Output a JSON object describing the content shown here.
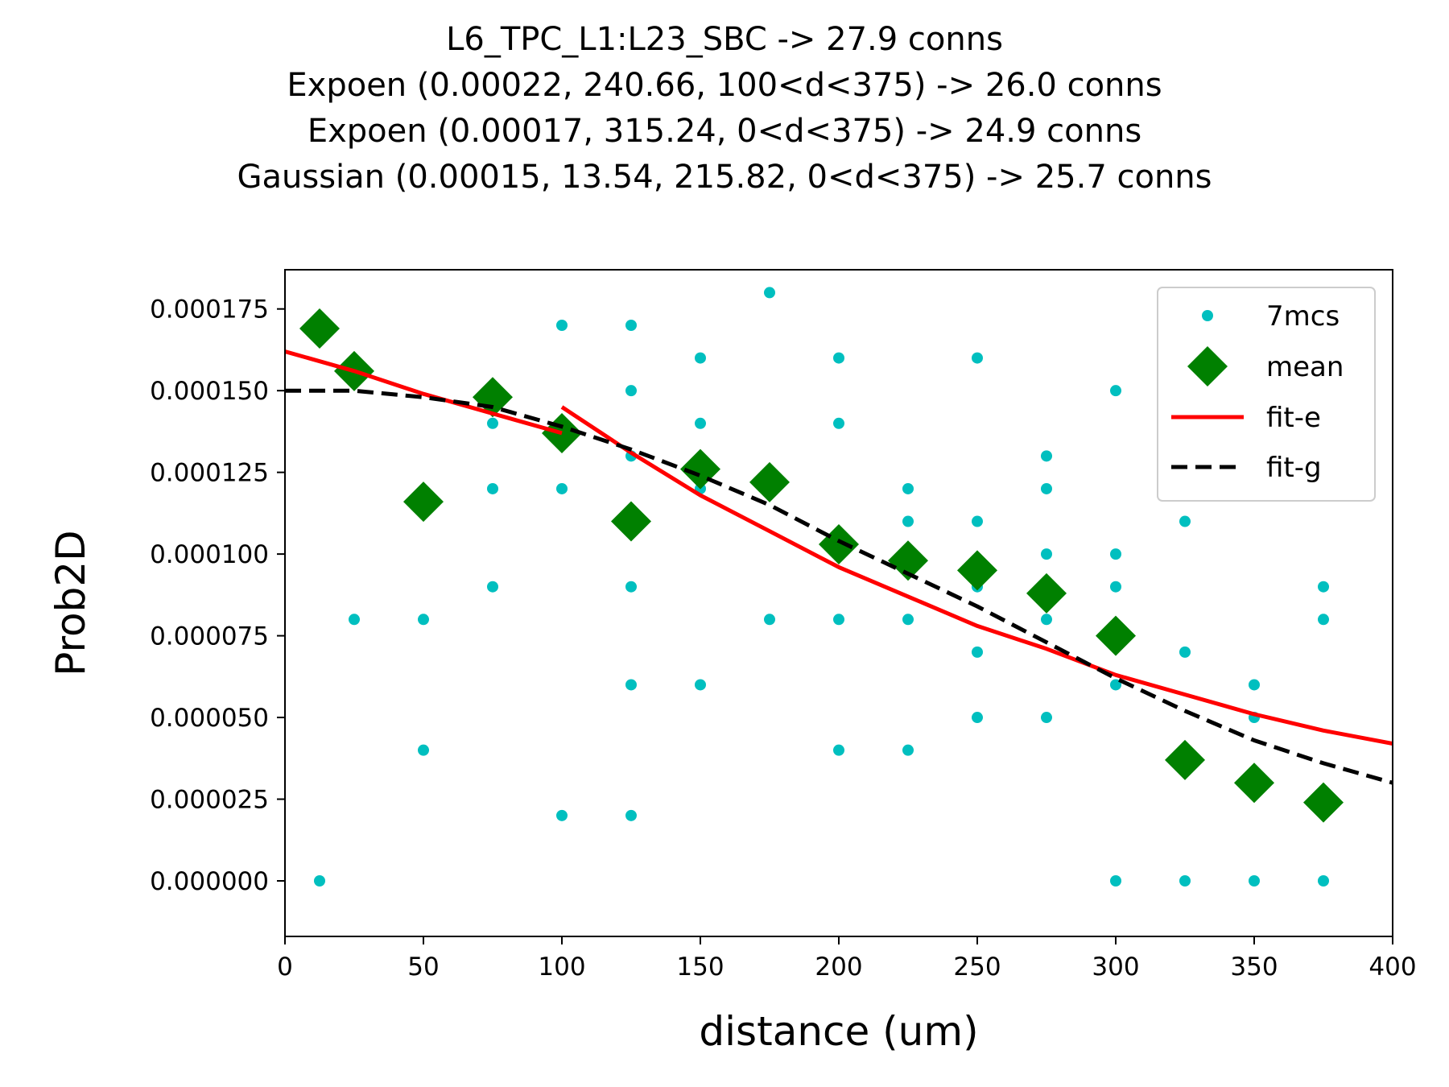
{
  "chart_data": {
    "type": "scatter",
    "title_lines": [
      "L6_TPC_L1:L23_SBC -> 27.9 conns",
      "Expoen (0.00022, 240.66, 100<d<375) -> 26.0 conns",
      "Expoen (0.00017, 315.24, 0<d<375) -> 24.9 conns",
      "Gaussian (0.00015, 13.54, 215.82, 0<d<375) -> 25.7 conns"
    ],
    "xlabel": "distance (um)",
    "ylabel": "Prob2D",
    "xlim": [
      0,
      400
    ],
    "ylim": [
      -1.7e-05,
      0.000187
    ],
    "xticks": [
      0,
      50,
      100,
      150,
      200,
      250,
      300,
      350,
      400
    ],
    "xtick_labels": [
      "0",
      "50",
      "100",
      "150",
      "200",
      "250",
      "300",
      "350",
      "400"
    ],
    "yticks": [
      0,
      2.5e-05,
      5e-05,
      7.5e-05,
      0.0001,
      0.000125,
      0.00015,
      0.000175
    ],
    "ytick_labels": [
      "0.000000",
      "0.000025",
      "0.000050",
      "0.000075",
      "0.000100",
      "0.000125",
      "0.000150",
      "0.000175"
    ],
    "legend_position": "top-right",
    "grid": false,
    "series": [
      {
        "name": "7mcs",
        "kind": "points",
        "color": "#00bfbf",
        "points": [
          [
            12.5,
            0
          ],
          [
            25,
            8e-05
          ],
          [
            50,
            8e-05
          ],
          [
            50,
            4e-05
          ],
          [
            75,
            0.00014
          ],
          [
            75,
            0.00012
          ],
          [
            75,
            9e-05
          ],
          [
            100,
            0.00017
          ],
          [
            100,
            0.00012
          ],
          [
            100,
            2e-05
          ],
          [
            125,
            0.00017
          ],
          [
            125,
            0.00015
          ],
          [
            125,
            0.00013
          ],
          [
            125,
            9e-05
          ],
          [
            125,
            6e-05
          ],
          [
            125,
            2e-05
          ],
          [
            150,
            0.00016
          ],
          [
            150,
            0.00014
          ],
          [
            150,
            0.00012
          ],
          [
            150,
            6e-05
          ],
          [
            175,
            0.00018
          ],
          [
            175,
            8e-05
          ],
          [
            200,
            0.00016
          ],
          [
            200,
            0.00014
          ],
          [
            200,
            8e-05
          ],
          [
            200,
            4e-05
          ],
          [
            225,
            0.00012
          ],
          [
            225,
            0.00011
          ],
          [
            225,
            8e-05
          ],
          [
            225,
            4e-05
          ],
          [
            250,
            0.00016
          ],
          [
            250,
            0.00011
          ],
          [
            250,
            9e-05
          ],
          [
            250,
            7e-05
          ],
          [
            250,
            5e-05
          ],
          [
            275,
            0.00013
          ],
          [
            275,
            0.00012
          ],
          [
            275,
            0.0001
          ],
          [
            275,
            8e-05
          ],
          [
            275,
            5e-05
          ],
          [
            300,
            0.00015
          ],
          [
            300,
            0.0001
          ],
          [
            300,
            9e-05
          ],
          [
            300,
            6e-05
          ],
          [
            300,
            0
          ],
          [
            325,
            0.00011
          ],
          [
            325,
            7e-05
          ],
          [
            325,
            0
          ],
          [
            350,
            6e-05
          ],
          [
            350,
            5e-05
          ],
          [
            350,
            0
          ],
          [
            375,
            9e-05
          ],
          [
            375,
            8e-05
          ],
          [
            375,
            0
          ]
        ]
      },
      {
        "name": "mean",
        "kind": "markers",
        "color": "#008000",
        "points": [
          [
            12.5,
            0.000169
          ],
          [
            25,
            0.000156
          ],
          [
            50,
            0.000116
          ],
          [
            75,
            0.000148
          ],
          [
            100,
            0.000137
          ],
          [
            125,
            0.00011
          ],
          [
            150,
            0.000126
          ],
          [
            175,
            0.000122
          ],
          [
            200,
            0.000103
          ],
          [
            225,
            9.8e-05
          ],
          [
            250,
            9.5e-05
          ],
          [
            275,
            8.8e-05
          ],
          [
            300,
            7.5e-05
          ],
          [
            325,
            3.7e-05
          ],
          [
            350,
            3e-05
          ],
          [
            375,
            2.4e-05
          ]
        ]
      },
      {
        "name": "fit-e",
        "kind": "line",
        "color": "#ff0000",
        "segments": [
          [
            [
              0,
              0.000162
            ],
            [
              25,
              0.000156
            ],
            [
              50,
              0.000149
            ],
            [
              75,
              0.000143
            ],
            [
              100,
              0.000137
            ]
          ],
          [
            [
              100,
              0.000145
            ],
            [
              125,
              0.000131
            ],
            [
              150,
              0.000118
            ],
            [
              175,
              0.000107
            ],
            [
              200,
              9.6e-05
            ],
            [
              225,
              8.7e-05
            ],
            [
              250,
              7.8e-05
            ],
            [
              275,
              7.1e-05
            ],
            [
              300,
              6.3e-05
            ],
            [
              325,
              5.7e-05
            ],
            [
              350,
              5.1e-05
            ],
            [
              375,
              4.6e-05
            ],
            [
              400,
              4.2e-05
            ]
          ]
        ]
      },
      {
        "name": "fit-g",
        "kind": "dashed-line",
        "color": "#000000",
        "segments": [
          [
            [
              0,
              0.00015
            ],
            [
              12.5,
              0.00015
            ],
            [
              25,
              0.00015
            ],
            [
              50,
              0.000148
            ],
            [
              75,
              0.000145
            ],
            [
              100,
              0.000139
            ],
            [
              125,
              0.000132
            ],
            [
              150,
              0.000124
            ],
            [
              175,
              0.000115
            ],
            [
              200,
              0.000104
            ],
            [
              225,
              9.4e-05
            ],
            [
              250,
              8.4e-05
            ],
            [
              275,
              7.3e-05
            ],
            [
              300,
              6.2e-05
            ],
            [
              325,
              5.2e-05
            ],
            [
              350,
              4.3e-05
            ],
            [
              375,
              3.6e-05
            ],
            [
              400,
              3e-05
            ]
          ]
        ]
      }
    ]
  }
}
